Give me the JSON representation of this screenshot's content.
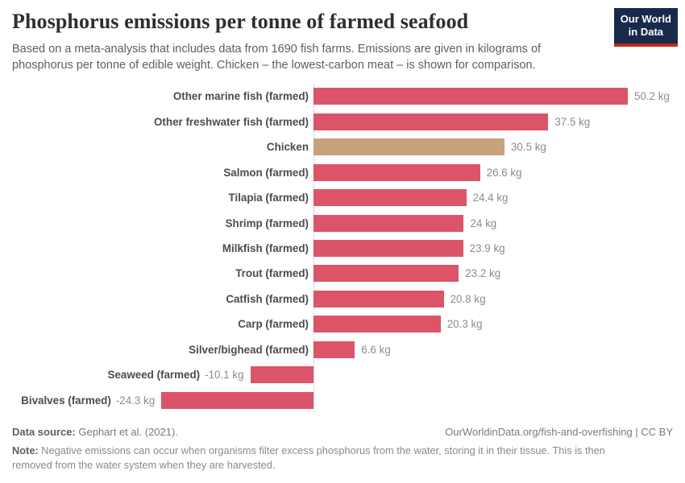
{
  "header": {
    "title": "Phosphorus emissions per tonne of farmed seafood",
    "subtitle": "Based on a meta-analysis that includes data from 1690 fish farms. Emissions are given in kilograms of phosphorus per tonne of edible weight. Chicken – the lowest-carbon meat – is shown for comparison.",
    "logo": {
      "line1": "Our World",
      "line2": "in Data",
      "background": "#182a4c",
      "accent": "#c5271d"
    }
  },
  "chart_data": {
    "type": "bar",
    "orientation": "horizontal",
    "title": "Phosphorus emissions per tonne of farmed seafood",
    "xlabel": "",
    "ylabel": "",
    "unit": "kg",
    "xlim": [
      -24.3,
      50.2
    ],
    "grid": false,
    "zero_axis_line": true,
    "categories": [
      "Other marine fish (farmed)",
      "Other freshwater fish (farmed)",
      "Chicken",
      "Salmon (farmed)",
      "Tilapia (farmed)",
      "Shrimp (farmed)",
      "Milkfish (farmed)",
      "Trout (farmed)",
      "Catfish (farmed)",
      "Carp (farmed)",
      "Silver/bighead (farmed)",
      "Seaweed (farmed)",
      "Bivalves (farmed)"
    ],
    "values": [
      50.2,
      37.5,
      30.5,
      26.6,
      24.4,
      24,
      23.9,
      23.2,
      20.8,
      20.3,
      6.6,
      -10.1,
      -24.3
    ],
    "value_labels": [
      "50.2 kg",
      "37.5 kg",
      "30.5 kg",
      "26.6 kg",
      "24.4 kg",
      "24 kg",
      "23.9 kg",
      "23.2 kg",
      "20.8 kg",
      "20.3 kg",
      "6.6 kg",
      "-10.1 kg",
      "-24.3 kg"
    ],
    "bar_color": "#dc5467",
    "highlight_index": 2,
    "highlight_color": "#c7a27a",
    "axis_line_color": "#d9d9d9"
  },
  "footer": {
    "source_label": "Data source:",
    "source_text": " Gephart et al. (2021).",
    "link": "OurWorldinData.org/fish-and-overfishing | CC BY",
    "note_label": "Note:",
    "note_text": " Negative emissions can occur when organisms filter excess phosphorus from the water, storing it in their tissue. This is then removed from the water system when they are harvested."
  }
}
